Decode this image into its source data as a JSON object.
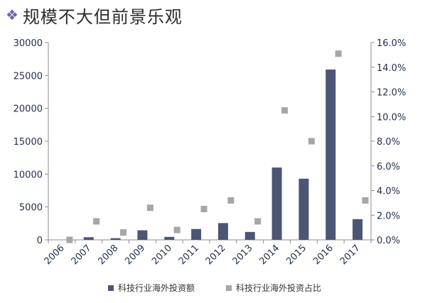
{
  "slide": {
    "title": "规模不大但前景乐观",
    "title_icon": "diamond-cluster-icon",
    "title_icon_color": "#6a5fb0"
  },
  "chart_data": {
    "type": "bar",
    "categories": [
      "2006",
      "2007",
      "2008",
      "2009",
      "2010",
      "2011",
      "2012",
      "2013",
      "2014",
      "2015",
      "2016",
      "2017"
    ],
    "series": [
      {
        "name": "科技行业海外投资额",
        "kind": "bar",
        "axis": "left",
        "color": "#4d5574",
        "values": [
          0,
          400,
          250,
          1450,
          450,
          1650,
          2550,
          1200,
          11000,
          9300,
          25900,
          3150
        ]
      },
      {
        "name": "科技行业海外投资占比",
        "kind": "scatter",
        "axis": "right",
        "color": "#a6a6a6",
        "values": [
          0.0,
          1.5,
          0.6,
          2.6,
          0.8,
          2.5,
          3.2,
          1.5,
          10.5,
          8.0,
          15.1,
          3.2
        ]
      }
    ],
    "y_left": {
      "ylim": [
        0,
        30000
      ],
      "ticks": [
        "0",
        "5000",
        "10000",
        "15000",
        "20000",
        "25000",
        "30000"
      ]
    },
    "y_right": {
      "ylim": [
        0,
        16
      ],
      "ticks": [
        "0.0%",
        "2.0%",
        "4.0%",
        "6.0%",
        "8.0%",
        "10.0%",
        "12.0%",
        "14.0%",
        "16.0%"
      ]
    },
    "grid": false,
    "legend": "bottom"
  }
}
